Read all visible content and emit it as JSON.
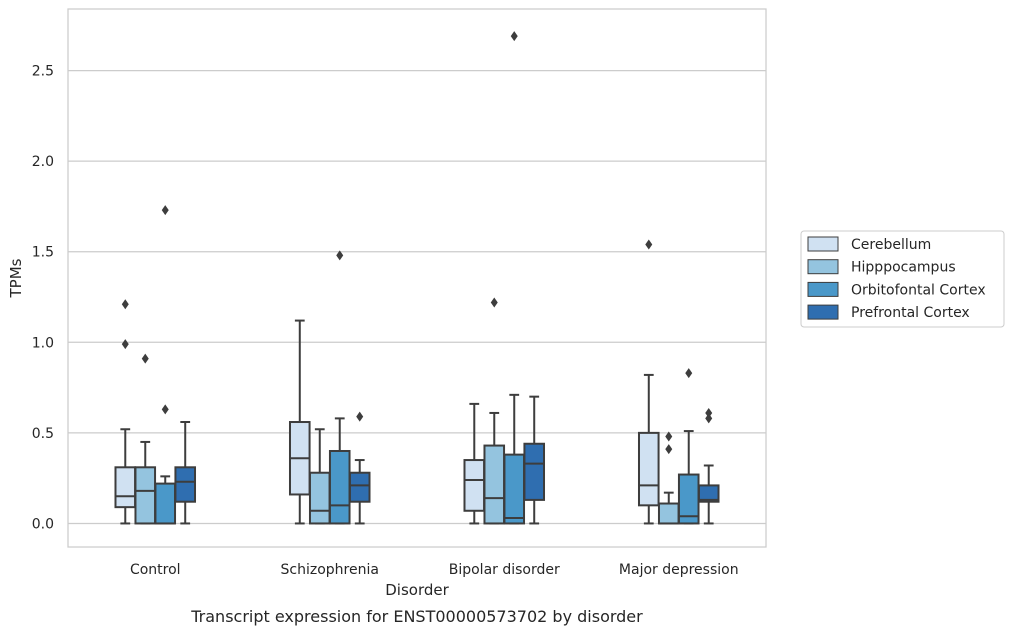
{
  "chart_data": {
    "type": "box",
    "caption": "Transcript expression for ENST00000573702 by disorder",
    "xlabel": "Disorder",
    "ylabel": "TPMs",
    "ylim": [
      -0.13,
      2.84
    ],
    "yticks": [
      0.0,
      0.5,
      1.0,
      1.5,
      2.0,
      2.5
    ],
    "ytick_labels": [
      "0.0",
      "0.5",
      "1.0",
      "1.5",
      "2.0",
      "2.5"
    ],
    "grid": "horizontal",
    "legend_position": "right",
    "categories": [
      "Control",
      "Schizophrenia",
      "Bipolar disorder",
      "Major depression"
    ],
    "series": [
      {
        "name": "Cerebellum",
        "color": "#d0e1f2",
        "boxes": [
          {
            "q1": 0.09,
            "median": 0.15,
            "q3": 0.31,
            "whisker_low": 0.0,
            "whisker_high": 0.52,
            "outliers": [
              0.99,
              1.21
            ]
          },
          {
            "q1": 0.16,
            "median": 0.36,
            "q3": 0.56,
            "whisker_low": 0.0,
            "whisker_high": 1.12,
            "outliers": []
          },
          {
            "q1": 0.07,
            "median": 0.24,
            "q3": 0.35,
            "whisker_low": 0.0,
            "whisker_high": 0.66,
            "outliers": []
          },
          {
            "q1": 0.1,
            "median": 0.21,
            "q3": 0.5,
            "whisker_low": 0.0,
            "whisker_high": 0.82,
            "outliers": [
              1.54
            ]
          }
        ]
      },
      {
        "name": "Hipppocampus",
        "color": "#94c4df",
        "boxes": [
          {
            "q1": 0.0,
            "median": 0.18,
            "q3": 0.31,
            "whisker_low": 0.0,
            "whisker_high": 0.45,
            "outliers": [
              0.91
            ]
          },
          {
            "q1": 0.0,
            "median": 0.07,
            "q3": 0.28,
            "whisker_low": 0.0,
            "whisker_high": 0.52,
            "outliers": []
          },
          {
            "q1": 0.0,
            "median": 0.14,
            "q3": 0.43,
            "whisker_low": 0.0,
            "whisker_high": 0.61,
            "outliers": [
              1.22
            ]
          },
          {
            "q1": 0.0,
            "median": 0.0,
            "q3": 0.11,
            "whisker_low": 0.0,
            "whisker_high": 0.17,
            "outliers": [
              0.41,
              0.48
            ]
          }
        ]
      },
      {
        "name": "Orbitofontal Cortex",
        "color": "#4a98c9",
        "boxes": [
          {
            "q1": 0.0,
            "median": 0.0,
            "q3": 0.22,
            "whisker_low": 0.0,
            "whisker_high": 0.26,
            "outliers": [
              0.63,
              1.73
            ]
          },
          {
            "q1": 0.0,
            "median": 0.1,
            "q3": 0.4,
            "whisker_low": 0.0,
            "whisker_high": 0.58,
            "outliers": [
              1.48
            ]
          },
          {
            "q1": 0.0,
            "median": 0.03,
            "q3": 0.38,
            "whisker_low": 0.0,
            "whisker_high": 0.71,
            "outliers": [
              2.69
            ]
          },
          {
            "q1": 0.0,
            "median": 0.04,
            "q3": 0.27,
            "whisker_low": 0.0,
            "whisker_high": 0.51,
            "outliers": [
              0.83
            ]
          }
        ]
      },
      {
        "name": "Prefrontal Cortex",
        "color": "#2f6eb0",
        "boxes": [
          {
            "q1": 0.12,
            "median": 0.23,
            "q3": 0.31,
            "whisker_low": 0.0,
            "whisker_high": 0.56,
            "outliers": []
          },
          {
            "q1": 0.12,
            "median": 0.21,
            "q3": 0.28,
            "whisker_low": 0.0,
            "whisker_high": 0.35,
            "outliers": [
              0.59
            ]
          },
          {
            "q1": 0.13,
            "median": 0.33,
            "q3": 0.44,
            "whisker_low": 0.0,
            "whisker_high": 0.7,
            "outliers": []
          },
          {
            "q1": 0.12,
            "median": 0.13,
            "q3": 0.21,
            "whisker_low": 0.0,
            "whisker_high": 0.32,
            "outliers": [
              0.58,
              0.61
            ]
          }
        ]
      }
    ]
  }
}
